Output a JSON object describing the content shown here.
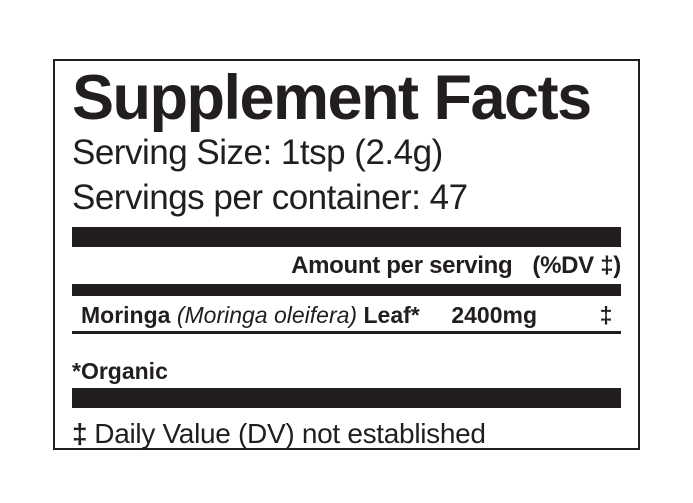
{
  "label": {
    "title": "Supplement Facts",
    "serving_size": "Serving Size: 1tsp (2.4g)",
    "servings_per_container": "Servings per container: 47",
    "columns": {
      "amount_header": "Amount per serving",
      "dv_header": "(%DV ‡)"
    },
    "ingredients": [
      {
        "name": "Moringa",
        "botanical": "(Moringa oleifera)",
        "part": "Leaf*",
        "amount": "2400mg",
        "dv": "‡"
      }
    ],
    "footnotes": {
      "organic": "*Organic",
      "dv_symbol": "‡",
      "dv_text": "Daily Value (DV) not established"
    },
    "colors": {
      "ink": "#221e20",
      "background": "#ffffff"
    }
  }
}
